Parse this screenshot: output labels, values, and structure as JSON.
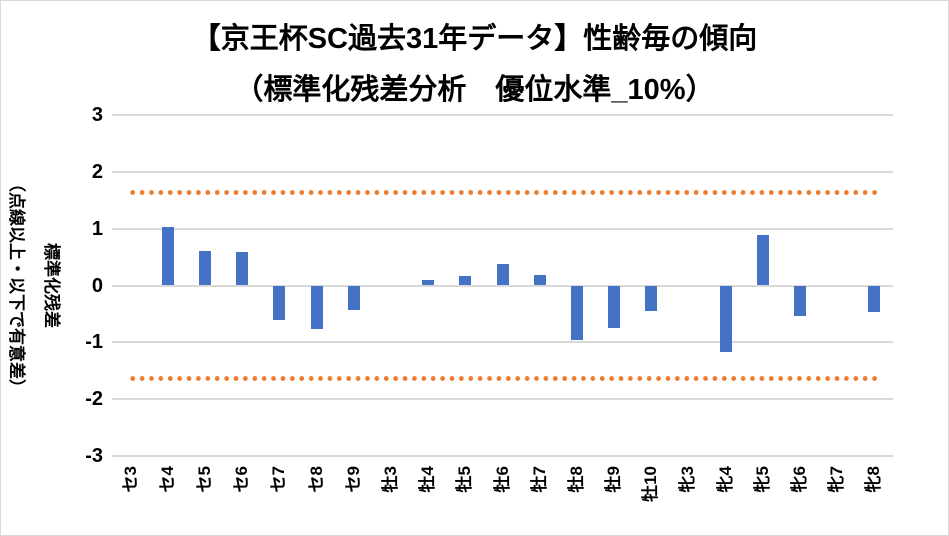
{
  "header": {
    "title_line1": "【京王杯SC過去31年データ】性齢毎の傾向",
    "title_line2": "（標準化残差分析　優位水準_10%）"
  },
  "y_axis": {
    "title_line1": "標準化残差",
    "title_line2": "（点線以上・以下で有意差）"
  },
  "chart_data": {
    "type": "bar",
    "title": "【京王杯SC過去31年データ】性齢毎の傾向（標準化残差分析　優位水準_10%）",
    "ylabel": "標準化残差（点線以上・以下で有意差）",
    "xlabel": "",
    "ylim": [
      -3,
      3
    ],
    "yticks": [
      3,
      2,
      1,
      0,
      -1,
      -2,
      -3
    ],
    "grid": true,
    "legend": false,
    "categories": [
      "セ3",
      "セ4",
      "セ5",
      "セ6",
      "セ7",
      "セ8",
      "セ9",
      "牡3",
      "牡4",
      "牡5",
      "牡6",
      "牡7",
      "牡8",
      "牡9",
      "牡10",
      "牝3",
      "牝4",
      "牝5",
      "牝6",
      "牝7",
      "牝8"
    ],
    "values": [
      null,
      1.03,
      0.6,
      0.59,
      -0.61,
      -0.76,
      -0.43,
      null,
      0.1,
      0.17,
      0.38,
      0.18,
      -0.96,
      -0.75,
      -0.45,
      null,
      -1.17,
      0.88,
      -0.53,
      null,
      -0.46
    ],
    "significance_lines": {
      "upper": 1.645,
      "lower": -1.645,
      "style": "dotted"
    },
    "colors": {
      "bar": "#4472C4",
      "significance": "#ED7D31",
      "gridline": "#D9D9D9",
      "text": "#000000"
    }
  }
}
